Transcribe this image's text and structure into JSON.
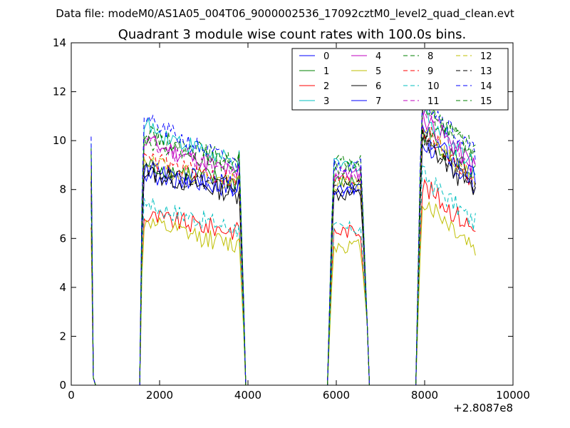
{
  "figure": {
    "suptitle": "Data file: modeM0/AS1A05_004T06_9000002536_17092cztM0_level2_quad_clean.evt",
    "title": "Quadrant 3 module wise count rates with 100.0s bins.",
    "x_offset_label": "+2.8087e8"
  },
  "chart_data": {
    "type": "line",
    "title": "Quadrant 3 module wise count rates with 100.0s bins.",
    "xlabel": "",
    "ylabel": "",
    "xlim": [
      0,
      10000
    ],
    "ylim": [
      0,
      14
    ],
    "x_ticks": [
      0,
      2000,
      4000,
      6000,
      8000,
      10000
    ],
    "y_ticks": [
      0,
      2,
      4,
      6,
      8,
      10,
      12,
      14
    ],
    "x_tick_labels": [
      "0",
      "2000",
      "4000",
      "6000",
      "8000",
      "10000"
    ],
    "y_tick_labels": [
      "0",
      "2",
      "4",
      "6",
      "8",
      "10",
      "12",
      "14"
    ],
    "x_offset": "+2.8087e8",
    "grid": false,
    "legend_position": "top-right",
    "legend_columns": 4,
    "series": [
      {
        "name": "0",
        "color": "#0000ff",
        "dash": "solid",
        "base": 8.6,
        "dip": 8.0,
        "fall": 8.3,
        "end": 8.2
      },
      {
        "name": "1",
        "color": "#008000",
        "dash": "solid",
        "base": 9.0,
        "dip": 8.3,
        "fall": 8.8,
        "end": 8.6
      },
      {
        "name": "2",
        "color": "#ff0000",
        "dash": "solid",
        "base": 6.9,
        "dip": 6.3,
        "fall": 6.6,
        "end": 6.3
      },
      {
        "name": "3",
        "color": "#00bfbf",
        "dash": "solid",
        "base": 10.6,
        "dip": 9.0,
        "fall": 9.6,
        "end": 9.0
      },
      {
        "name": "4",
        "color": "#bf00bf",
        "dash": "solid",
        "base": 10.0,
        "dip": 8.6,
        "fall": 9.4,
        "end": 8.9
      },
      {
        "name": "5",
        "color": "#bfbf00",
        "dash": "solid",
        "base": 6.6,
        "dip": 5.7,
        "fall": 6.0,
        "end": 5.6
      },
      {
        "name": "6",
        "color": "#000000",
        "dash": "solid",
        "base": 8.7,
        "dip": 7.8,
        "fall": 8.4,
        "end": 7.9
      },
      {
        "name": "7",
        "color": "#0000ff",
        "dash": "solid",
        "base": 8.9,
        "dip": 8.1,
        "fall": 8.7,
        "end": 8.4
      },
      {
        "name": "8",
        "color": "#008000",
        "dash": "dashed",
        "base": 10.3,
        "dip": 9.1,
        "fall": 10.0,
        "end": 9.5
      },
      {
        "name": "9",
        "color": "#ff0000",
        "dash": "dashed",
        "base": 9.2,
        "dip": 8.4,
        "fall": 8.9,
        "end": 8.3
      },
      {
        "name": "10",
        "color": "#00bfbf",
        "dash": "dashed",
        "base": 7.4,
        "dip": 6.4,
        "fall": 7.0,
        "end": 6.6
      },
      {
        "name": "11",
        "color": "#bf00bf",
        "dash": "dashed",
        "base": 9.9,
        "dip": 8.7,
        "fall": 9.5,
        "end": 8.9
      },
      {
        "name": "12",
        "color": "#bfbf00",
        "dash": "dashed",
        "base": 9.1,
        "dip": 8.2,
        "fall": 8.8,
        "end": 8.4
      },
      {
        "name": "13",
        "color": "#000000",
        "dash": "dashed",
        "base": 8.8,
        "dip": 8.1,
        "fall": 8.5,
        "end": 8.1
      },
      {
        "name": "14",
        "color": "#0000ff",
        "dash": "dashed",
        "base": 10.8,
        "dip": 9.0,
        "fall": 10.2,
        "end": 9.4
      },
      {
        "name": "15",
        "color": "#008000",
        "dash": "dashed",
        "base": 10.1,
        "dip": 8.9,
        "fall": 9.8,
        "end": 9.3
      }
    ]
  }
}
